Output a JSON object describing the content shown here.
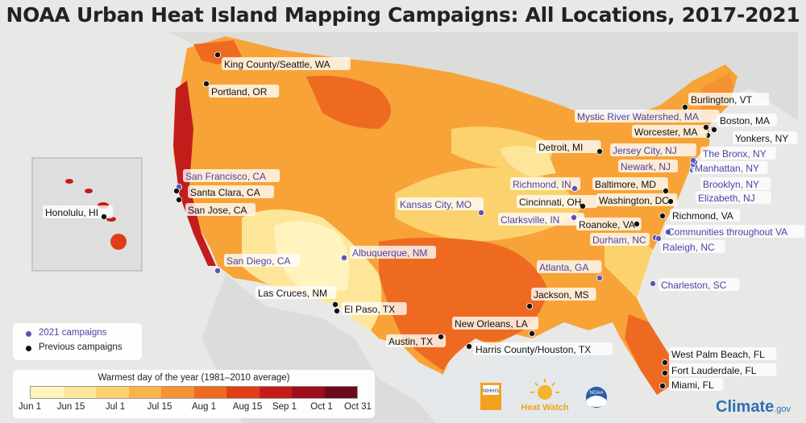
{
  "title": "NOAA Urban Heat Island Mapping Campaigns: All Locations, 2017-2021",
  "legend": {
    "items": [
      {
        "label": "2021 campaigns",
        "color": "#5a53b8"
      },
      {
        "label": "Previous campaigns",
        "color": "#111111"
      }
    ]
  },
  "scale": {
    "title": "Warmest day of the year (1981–2010 average)",
    "colors": [
      "#fff4bd",
      "#fde59a",
      "#fcd26e",
      "#f9b54a",
      "#f59231",
      "#ee6a21",
      "#e03e17",
      "#c21d1a",
      "#9c0d1e",
      "#6a0a1a"
    ],
    "ticks": [
      "Jun 1",
      "Jun 15",
      "Jul 1",
      "Jul 15",
      "Aug 1",
      "Aug 15",
      "Sep 1",
      "Oct 1",
      "Oct 31"
    ]
  },
  "locations": [
    {
      "name": "King County/Seattle, WA",
      "campaign": "previous"
    },
    {
      "name": "Portland, OR",
      "campaign": "previous"
    },
    {
      "name": "San Francisco, CA",
      "campaign": "2021"
    },
    {
      "name": "Santa Clara, CA",
      "campaign": "previous"
    },
    {
      "name": "San Jose, CA",
      "campaign": "previous"
    },
    {
      "name": "San Diego, CA",
      "campaign": "2021"
    },
    {
      "name": "Honolulu, HI",
      "campaign": "previous"
    },
    {
      "name": "Las Cruces, NM",
      "campaign": "previous"
    },
    {
      "name": "El Paso, TX",
      "campaign": "previous"
    },
    {
      "name": "Albuquerque, NM",
      "campaign": "2021"
    },
    {
      "name": "Kansas City, MO",
      "campaign": "2021"
    },
    {
      "name": "Austin, TX",
      "campaign": "previous"
    },
    {
      "name": "New Orleans, LA",
      "campaign": "previous"
    },
    {
      "name": "Harris County/Houston, TX",
      "campaign": "previous"
    },
    {
      "name": "Jackson, MS",
      "campaign": "previous"
    },
    {
      "name": "Atlanta, GA",
      "campaign": "2021"
    },
    {
      "name": "Charleston, SC",
      "campaign": "2021"
    },
    {
      "name": "West Palm Beach, FL",
      "campaign": "previous"
    },
    {
      "name": "Fort Lauderdale, FL",
      "campaign": "previous"
    },
    {
      "name": "Miami, FL",
      "campaign": "previous"
    },
    {
      "name": "Detroit, MI",
      "campaign": "previous"
    },
    {
      "name": "Richmond, IN",
      "campaign": "2021"
    },
    {
      "name": "Cincinnati, OH",
      "campaign": "previous"
    },
    {
      "name": "Clarksville, IN",
      "campaign": "2021"
    },
    {
      "name": "Roanoke, VA",
      "campaign": "previous"
    },
    {
      "name": "Durham, NC",
      "campaign": "2021"
    },
    {
      "name": "Raleigh, NC",
      "campaign": "2021"
    },
    {
      "name": "Communities throughout VA",
      "campaign": "2021"
    },
    {
      "name": "Richmond, VA",
      "campaign": "previous"
    },
    {
      "name": "Washington, DC",
      "campaign": "previous"
    },
    {
      "name": "Baltimore, MD",
      "campaign": "previous"
    },
    {
      "name": "Elizabeth, NJ",
      "campaign": "2021"
    },
    {
      "name": "Brooklyn, NY",
      "campaign": "2021"
    },
    {
      "name": "Manhattan, NY",
      "campaign": "2021"
    },
    {
      "name": "Newark, NJ",
      "campaign": "2021"
    },
    {
      "name": "The Bronx, NY",
      "campaign": "2021"
    },
    {
      "name": "Jersey City, NJ",
      "campaign": "2021"
    },
    {
      "name": "Yonkers, NY",
      "campaign": "previous"
    },
    {
      "name": "Worcester, MA",
      "campaign": "previous"
    },
    {
      "name": "Mystic River Watershed, MA",
      "campaign": "2021"
    },
    {
      "name": "Boston, MA",
      "campaign": "previous"
    },
    {
      "name": "Burlington, VT",
      "campaign": "previous"
    }
  ],
  "logos": {
    "nihhis": "NIHHIS",
    "heatwatch": "Heat Watch",
    "noaa": "NOAA",
    "climate_main": "Climate",
    "climate_suffix": ".gov"
  }
}
